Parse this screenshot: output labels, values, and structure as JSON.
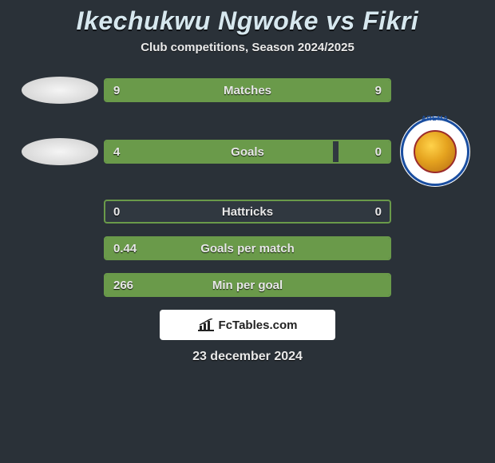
{
  "page": {
    "background_color": "#2a3138",
    "accent_color": "#6a9a4a",
    "text_color": "#e8e8e8",
    "title_color": "#d7e8ef"
  },
  "title": "Ikechukwu Ngwoke vs Fikri",
  "subtitle": "Club competitions, Season 2024/2025",
  "date": "23 december 2024",
  "branding_text": "FcTables.com",
  "player_left": {
    "logo_shape": "oval",
    "logo_colors": {
      "light": "#f5f5f5",
      "mid": "#d8d8d8",
      "dark": "#bcbcbc"
    }
  },
  "player_right": {
    "logo_shape": "circle-badge",
    "logo_text": "AREMA",
    "ring_color": "#1a4ea0",
    "inner_gradient": [
      "#ffd24a",
      "#e5a31f",
      "#b46b14"
    ],
    "inner_border": "#9b2b2b"
  },
  "stats": [
    {
      "label": "Matches",
      "left_value": "9",
      "right_value": "9",
      "left_fill_pct": 50,
      "right_fill_pct": 50,
      "show_left_logo": true,
      "show_right_logo": false
    },
    {
      "label": "Goals",
      "left_value": "4",
      "right_value": "0",
      "left_fill_pct": 80,
      "right_fill_pct": 18,
      "show_left_logo": true,
      "show_right_logo": true
    },
    {
      "label": "Hattricks",
      "left_value": "0",
      "right_value": "0",
      "left_fill_pct": 0,
      "right_fill_pct": 0,
      "show_left_logo": false,
      "show_right_logo": false
    },
    {
      "label": "Goals per match",
      "left_value": "0.44",
      "right_value": "",
      "left_fill_pct": 100,
      "right_fill_pct": 0,
      "show_left_logo": false,
      "show_right_logo": false
    },
    {
      "label": "Min per goal",
      "left_value": "266",
      "right_value": "",
      "left_fill_pct": 100,
      "right_fill_pct": 0,
      "show_left_logo": false,
      "show_right_logo": false
    }
  ]
}
